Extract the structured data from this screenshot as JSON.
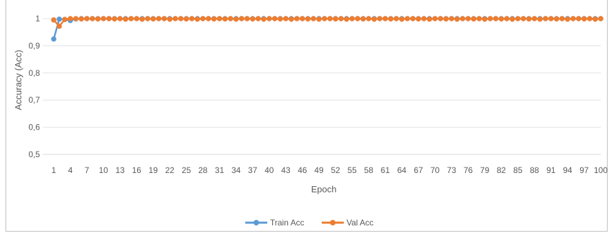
{
  "chart_data": {
    "type": "line",
    "xlabel": "Epoch",
    "ylabel": "Accuracy (Acc)",
    "ylim": [
      0.5,
      1
    ],
    "yticks": [
      "0,5",
      "0,6",
      "0,7",
      "0,8",
      "0,9",
      "1"
    ],
    "xlim": [
      1,
      100
    ],
    "xticks": [
      "1",
      "4",
      "7",
      "10",
      "13",
      "16",
      "19",
      "22",
      "25",
      "28",
      "31",
      "34",
      "37",
      "40",
      "43",
      "46",
      "49",
      "52",
      "55",
      "58",
      "61",
      "64",
      "67",
      "70",
      "73",
      "76",
      "79",
      "82",
      "85",
      "88",
      "91",
      "94",
      "97",
      "100"
    ],
    "grid": true,
    "legend_position": "bottom",
    "series": [
      {
        "name": "Train Acc",
        "color": "#5b9bd5",
        "x": [
          1,
          2,
          3,
          4,
          5,
          6,
          7,
          8,
          9,
          10,
          11,
          12,
          13,
          14,
          15,
          16,
          17,
          18,
          19,
          20,
          21,
          22,
          23,
          24,
          25,
          26,
          27,
          28,
          29,
          30,
          31,
          32,
          33,
          34,
          35,
          36,
          37,
          38,
          39,
          40,
          41,
          42,
          43,
          44,
          45,
          46,
          47,
          48,
          49,
          50,
          51,
          52,
          53,
          54,
          55,
          56,
          57,
          58,
          59,
          60,
          61,
          62,
          63,
          64,
          65,
          66,
          67,
          68,
          69,
          70,
          71,
          72,
          73,
          74,
          75,
          76,
          77,
          78,
          79,
          80,
          81,
          82,
          83,
          84,
          85,
          86,
          87,
          88,
          89,
          90,
          91,
          92,
          93,
          94,
          95,
          96,
          97,
          98,
          99,
          100
        ],
        "values": [
          0.925,
          0.998,
          0.997,
          0.993,
          0.999,
          1,
          1,
          1,
          1,
          1,
          1,
          1,
          1,
          1,
          1,
          1,
          1,
          1,
          1,
          1,
          1,
          1,
          1,
          1,
          1,
          1,
          1,
          1,
          1,
          1,
          1,
          1,
          1,
          1,
          1,
          1,
          1,
          1,
          1,
          1,
          1,
          1,
          1,
          1,
          1,
          1,
          1,
          1,
          1,
          1,
          1,
          1,
          1,
          1,
          1,
          1,
          1,
          1,
          1,
          1,
          1,
          1,
          1,
          1,
          1,
          1,
          1,
          1,
          1,
          1,
          1,
          1,
          1,
          1,
          1,
          1,
          1,
          1,
          1,
          1,
          1,
          1,
          1,
          1,
          1,
          1,
          1,
          1,
          1,
          1,
          1,
          1,
          1,
          1,
          1,
          1,
          1,
          1,
          1,
          1
        ]
      },
      {
        "name": "Val Acc",
        "color": "#ed7d31",
        "x": [
          1,
          2,
          3,
          4,
          5,
          6,
          7,
          8,
          9,
          10,
          11,
          12,
          13,
          14,
          15,
          16,
          17,
          18,
          19,
          20,
          21,
          22,
          23,
          24,
          25,
          26,
          27,
          28,
          29,
          30,
          31,
          32,
          33,
          34,
          35,
          36,
          37,
          38,
          39,
          40,
          41,
          42,
          43,
          44,
          45,
          46,
          47,
          48,
          49,
          50,
          51,
          52,
          53,
          54,
          55,
          56,
          57,
          58,
          59,
          60,
          61,
          62,
          63,
          64,
          65,
          66,
          67,
          68,
          69,
          70,
          71,
          72,
          73,
          74,
          75,
          76,
          77,
          78,
          79,
          80,
          81,
          82,
          83,
          84,
          85,
          86,
          87,
          88,
          89,
          90,
          91,
          92,
          93,
          94,
          95,
          96,
          97,
          98,
          99,
          100
        ],
        "values": [
          0.995,
          0.972,
          0.997,
          1,
          1,
          0.999,
          1,
          1,
          0.999,
          1,
          1,
          0.999,
          1,
          0.998,
          1,
          1,
          0.998,
          1,
          0.999,
          1,
          1,
          0.998,
          1,
          1,
          0.999,
          1,
          0.998,
          1,
          1,
          0.999,
          1,
          0.999,
          1,
          0.998,
          1,
          1,
          0.999,
          1,
          0.998,
          1,
          1,
          0.999,
          1,
          0.998,
          1,
          1,
          0.999,
          1,
          0.998,
          1,
          1,
          0.999,
          1,
          0.998,
          1,
          1,
          0.999,
          1,
          0.998,
          1,
          1,
          0.999,
          1,
          0.998,
          1,
          1,
          0.999,
          1,
          0.998,
          1,
          1,
          0.999,
          1,
          0.998,
          1,
          1,
          0.999,
          1,
          0.998,
          1,
          1,
          0.999,
          1,
          0.998,
          1,
          1,
          0.999,
          1,
          0.998,
          1,
          1,
          0.999,
          1,
          0.998,
          1,
          1,
          0.999,
          1,
          0.998,
          1
        ]
      }
    ]
  }
}
